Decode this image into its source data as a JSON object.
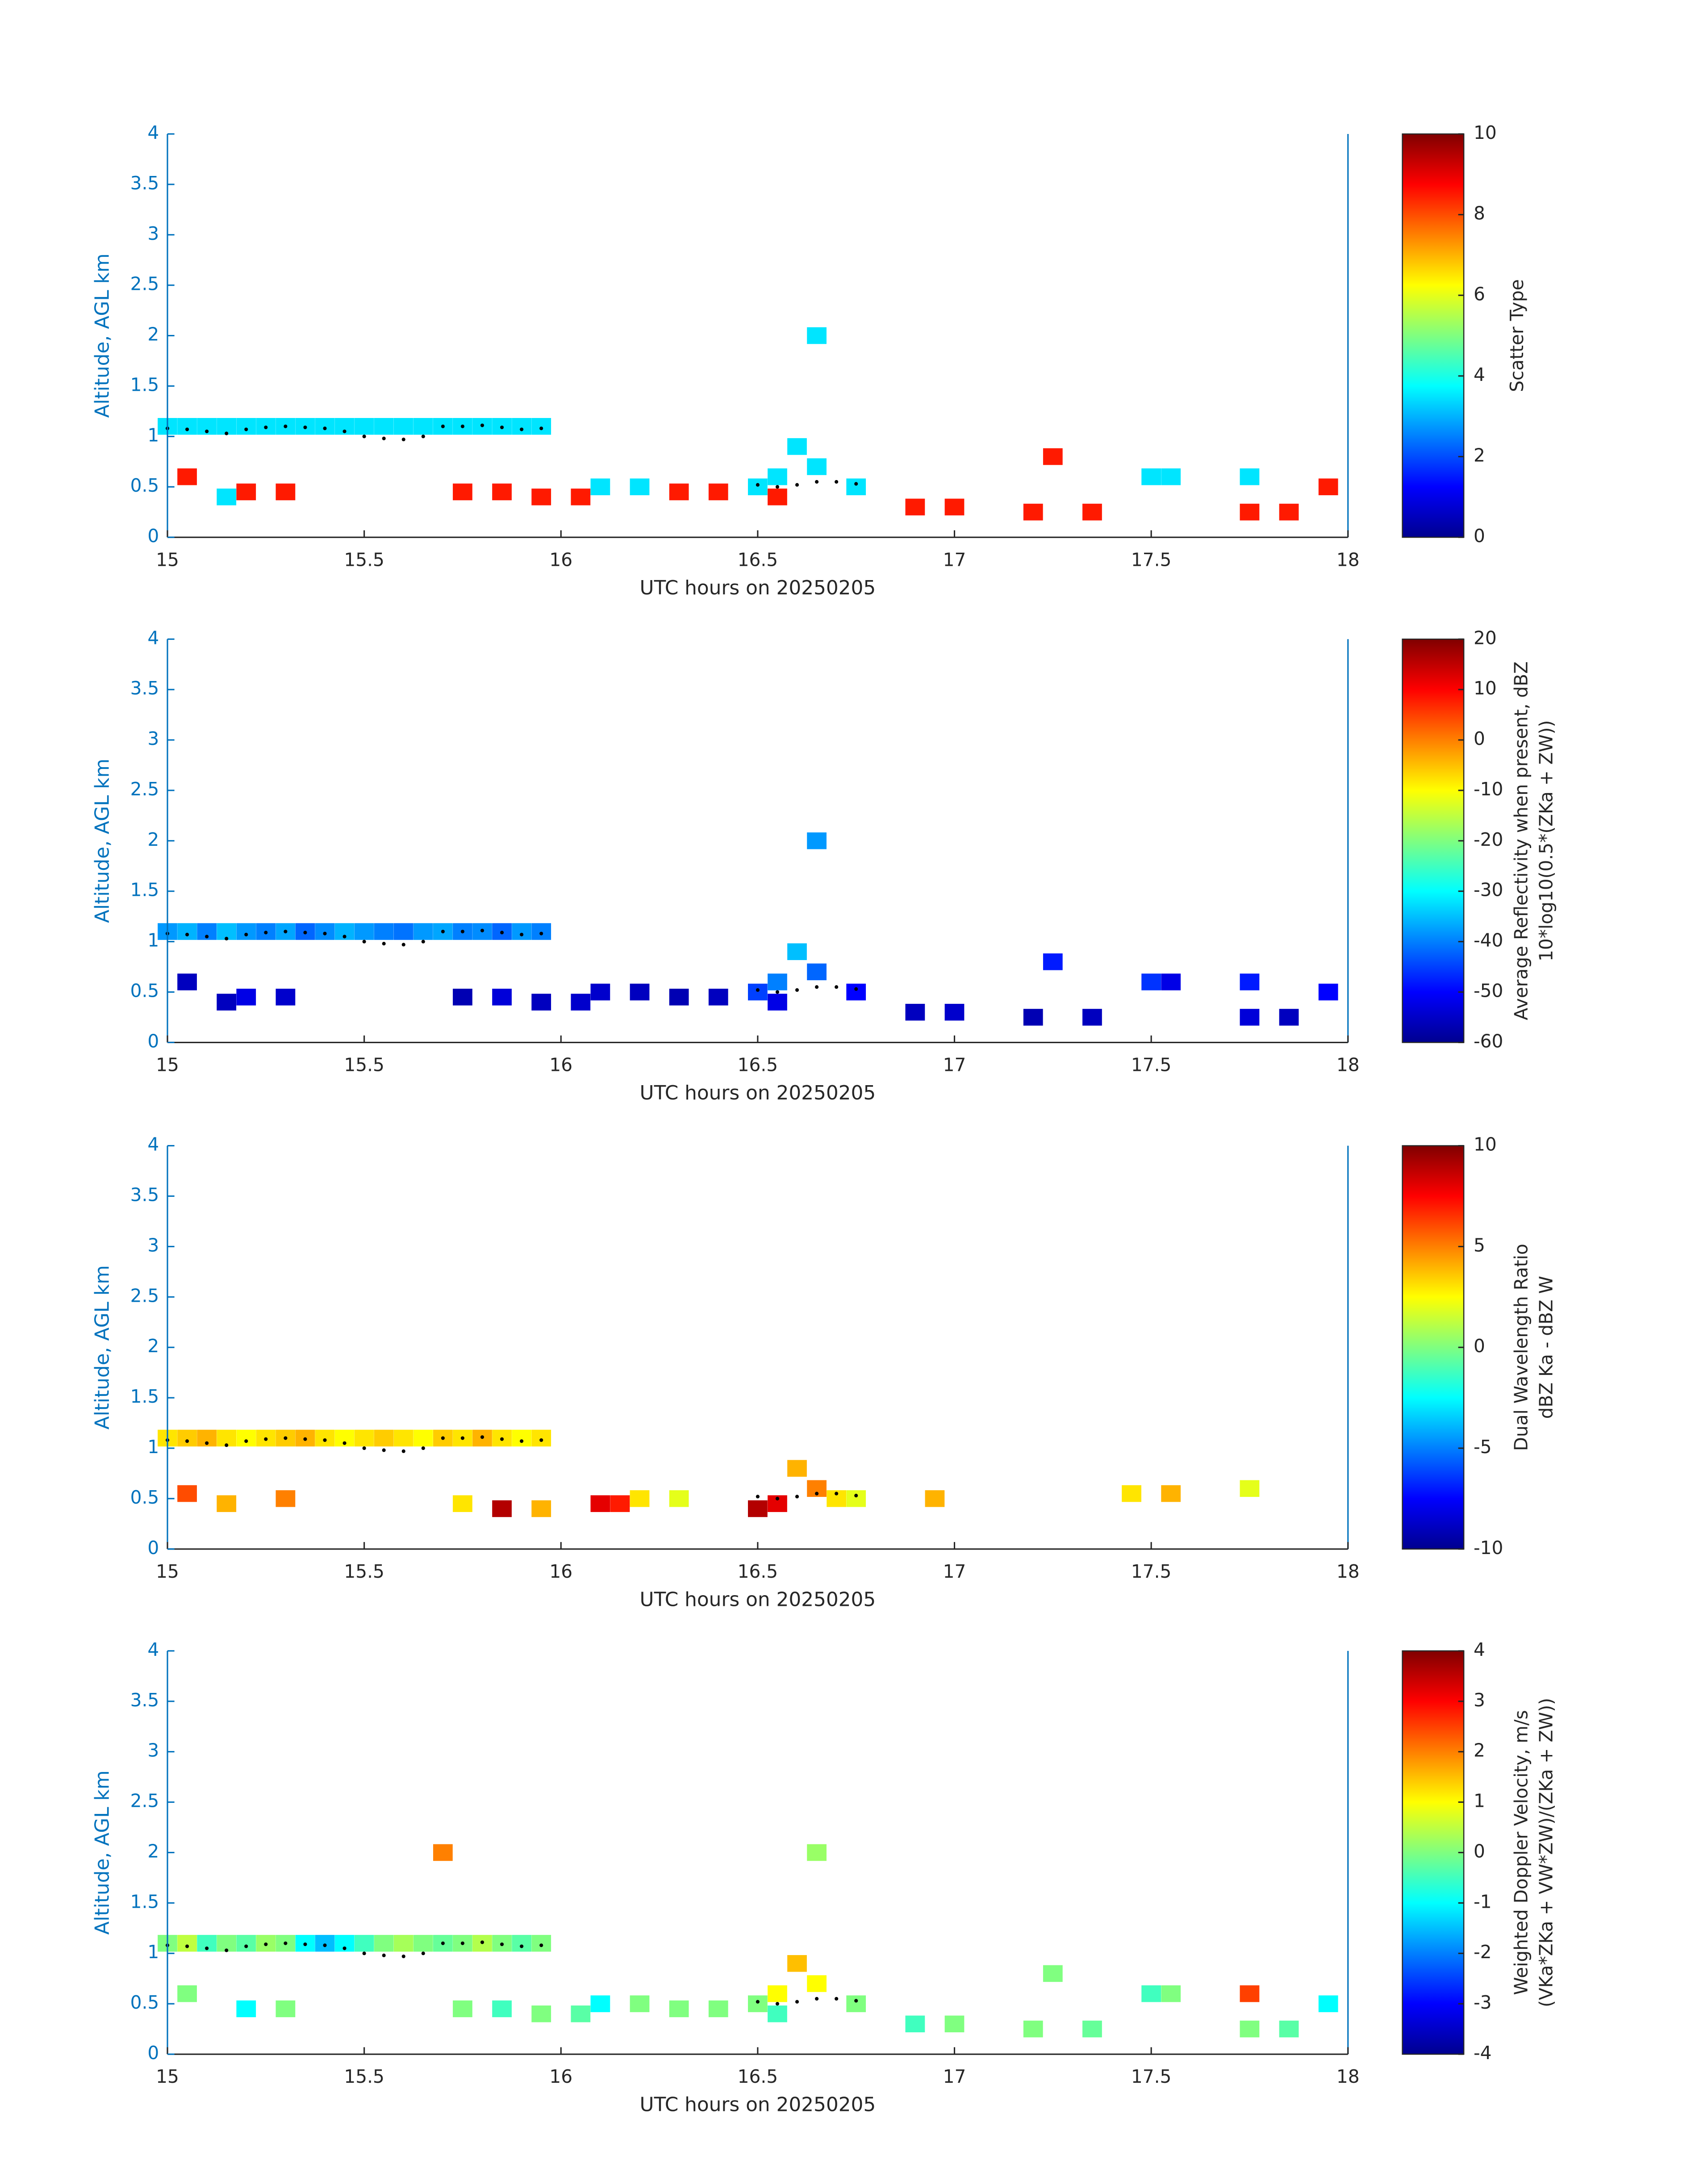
{
  "chart_data": [
    {
      "type": "heatmap",
      "xlabel": "UTC hours on 20250205",
      "ylabel": "Altitude, AGL km",
      "xlim": [
        15,
        18
      ],
      "ylim": [
        0,
        4
      ],
      "xticks": [
        15,
        15.5,
        16,
        16.5,
        17,
        17.5,
        18
      ],
      "yticks": [
        0,
        0.5,
        1,
        1.5,
        2,
        2.5,
        3,
        3.5,
        4
      ],
      "colormap": "jet",
      "colorbar": {
        "label": [
          "Scatter Type"
        ],
        "lim": [
          0,
          10
        ],
        "ticks": [
          0,
          2,
          4,
          6,
          8,
          10
        ]
      },
      "cells": {
        "x": [
          15.0,
          15.05,
          15.1,
          15.15,
          15.2,
          15.25,
          15.3,
          15.35,
          15.4,
          15.45,
          15.5,
          15.55,
          15.6,
          15.65,
          15.7,
          15.75,
          15.8,
          15.85,
          15.9,
          15.95,
          15.05,
          15.2,
          15.3,
          15.75,
          15.85,
          15.95,
          16.05,
          16.3,
          16.4,
          16.55,
          16.9,
          17.0,
          17.2,
          17.35,
          17.75,
          17.85,
          17.95,
          17.25,
          16.1,
          16.2,
          16.5,
          16.55,
          16.6,
          16.65,
          16.75,
          17.5,
          17.55,
          17.75,
          16.65,
          15.15
        ],
        "y": [
          1.1,
          1.1,
          1.1,
          1.1,
          1.1,
          1.1,
          1.1,
          1.1,
          1.1,
          1.1,
          1.1,
          1.1,
          1.1,
          1.1,
          1.1,
          1.1,
          1.1,
          1.1,
          1.1,
          1.1,
          0.6,
          0.45,
          0.45,
          0.45,
          0.45,
          0.4,
          0.4,
          0.45,
          0.45,
          0.4,
          0.3,
          0.3,
          0.25,
          0.25,
          0.25,
          0.25,
          0.5,
          0.8,
          0.5,
          0.5,
          0.5,
          0.6,
          0.9,
          0.7,
          0.5,
          0.6,
          0.6,
          0.6,
          2.0,
          0.4
        ],
        "values": [
          3.5,
          3.5,
          3.5,
          3.5,
          3.5,
          3.5,
          3.5,
          3.5,
          3.5,
          3.5,
          3.5,
          3.5,
          3.5,
          3.5,
          3.5,
          3.5,
          3.5,
          3.5,
          3.5,
          3.5,
          8.5,
          8.5,
          8.5,
          8.5,
          8.5,
          8.5,
          8.5,
          8.5,
          8.5,
          8.5,
          8.5,
          8.5,
          8.5,
          8.5,
          8.5,
          8.5,
          8.5,
          8.5,
          3.5,
          3.5,
          3.5,
          3.5,
          3.5,
          3.5,
          3.5,
          3.5,
          3.5,
          3.5,
          3.5,
          3.5
        ]
      },
      "dots": {
        "x": [
          15.0,
          15.05,
          15.1,
          15.15,
          15.2,
          15.25,
          15.3,
          15.35,
          15.4,
          15.45,
          15.5,
          15.55,
          15.6,
          15.65,
          15.7,
          15.75,
          15.8,
          15.85,
          15.9,
          15.95,
          16.5,
          16.55,
          16.6,
          16.65,
          16.7,
          16.75
        ],
        "y": [
          1.08,
          1.07,
          1.05,
          1.03,
          1.07,
          1.09,
          1.1,
          1.09,
          1.08,
          1.05,
          1.0,
          0.98,
          0.97,
          1.0,
          1.1,
          1.1,
          1.11,
          1.09,
          1.07,
          1.08,
          0.52,
          0.5,
          0.52,
          0.55,
          0.55,
          0.53
        ]
      }
    },
    {
      "type": "heatmap",
      "xlabel": "UTC hours on 20250205",
      "ylabel": "Altitude, AGL km",
      "xlim": [
        15,
        18
      ],
      "ylim": [
        0,
        4
      ],
      "xticks": [
        15,
        15.5,
        16,
        16.5,
        17,
        17.5,
        18
      ],
      "yticks": [
        0,
        0.5,
        1,
        1.5,
        2,
        2.5,
        3,
        3.5,
        4
      ],
      "colormap": "jet",
      "colorbar": {
        "label": [
          "Average Reflectivity when present, dBZ",
          "10*log10(0.5*(ZKa + ZW))"
        ],
        "lim": [
          -60,
          20
        ],
        "ticks": [
          -60,
          -50,
          -40,
          -30,
          -20,
          -10,
          0,
          10,
          20
        ]
      },
      "cells": {
        "x": [
          15.0,
          15.05,
          15.1,
          15.15,
          15.2,
          15.25,
          15.3,
          15.35,
          15.4,
          15.45,
          15.5,
          15.55,
          15.6,
          15.65,
          15.7,
          15.75,
          15.8,
          15.85,
          15.9,
          15.95,
          15.05,
          15.2,
          15.3,
          15.75,
          15.85,
          15.95,
          16.05,
          16.3,
          16.4,
          16.55,
          16.9,
          17.0,
          17.2,
          17.35,
          17.75,
          17.85,
          17.95,
          17.25,
          16.1,
          16.2,
          16.5,
          16.55,
          16.6,
          16.65,
          16.75,
          17.5,
          17.55,
          17.75,
          16.65,
          15.15
        ],
        "y": [
          1.1,
          1.1,
          1.1,
          1.1,
          1.1,
          1.1,
          1.1,
          1.1,
          1.1,
          1.1,
          1.1,
          1.1,
          1.1,
          1.1,
          1.1,
          1.1,
          1.1,
          1.1,
          1.1,
          1.1,
          0.6,
          0.45,
          0.45,
          0.45,
          0.45,
          0.4,
          0.4,
          0.45,
          0.45,
          0.4,
          0.3,
          0.3,
          0.25,
          0.25,
          0.25,
          0.25,
          0.5,
          0.8,
          0.5,
          0.5,
          0.5,
          0.6,
          0.9,
          0.7,
          0.5,
          0.6,
          0.6,
          0.6,
          2.0,
          0.4
        ],
        "values": [
          -38,
          -36,
          -40,
          -35,
          -38,
          -40,
          -37,
          -42,
          -39,
          -36,
          -38,
          -40,
          -41,
          -38,
          -37,
          -40,
          -39,
          -42,
          -38,
          -40,
          -55,
          -52,
          -54,
          -56,
          -53,
          -55,
          -54,
          -56,
          -55,
          -52,
          -55,
          -54,
          -56,
          -55,
          -53,
          -55,
          -50,
          -48,
          -54,
          -55,
          -45,
          -40,
          -35,
          -42,
          -50,
          -46,
          -52,
          -48,
          -38,
          -55
        ]
      },
      "dots": {
        "x": [
          15.0,
          15.05,
          15.1,
          15.15,
          15.2,
          15.25,
          15.3,
          15.35,
          15.4,
          15.45,
          15.5,
          15.55,
          15.6,
          15.65,
          15.7,
          15.75,
          15.8,
          15.85,
          15.9,
          15.95,
          16.5,
          16.55,
          16.6,
          16.65,
          16.7,
          16.75
        ],
        "y": [
          1.08,
          1.07,
          1.05,
          1.03,
          1.07,
          1.09,
          1.1,
          1.09,
          1.08,
          1.05,
          1.0,
          0.98,
          0.97,
          1.0,
          1.1,
          1.1,
          1.11,
          1.09,
          1.07,
          1.08,
          0.52,
          0.5,
          0.52,
          0.55,
          0.55,
          0.53
        ]
      }
    },
    {
      "type": "heatmap",
      "xlabel": "UTC hours on 20250205",
      "ylabel": "Altitude, AGL km",
      "xlim": [
        15,
        18
      ],
      "ylim": [
        0,
        4
      ],
      "xticks": [
        15,
        15.5,
        16,
        16.5,
        17,
        17.5,
        18
      ],
      "yticks": [
        0,
        0.5,
        1,
        1.5,
        2,
        2.5,
        3,
        3.5,
        4
      ],
      "colormap": "jet",
      "colorbar": {
        "label": [
          "Dual Wavelength Ratio",
          "dBZ Ka - dBZ W"
        ],
        "lim": [
          -10,
          10
        ],
        "ticks": [
          -10,
          -5,
          0,
          5,
          10
        ]
      },
      "cells": {
        "x": [
          15.0,
          15.05,
          15.1,
          15.15,
          15.2,
          15.25,
          15.3,
          15.35,
          15.4,
          15.45,
          15.5,
          15.55,
          15.6,
          15.65,
          15.7,
          15.75,
          15.8,
          15.85,
          15.9,
          15.95,
          15.05,
          15.15,
          15.3,
          15.75,
          15.85,
          15.95,
          16.1,
          16.15,
          16.2,
          16.3,
          16.5,
          16.55,
          16.6,
          16.65,
          16.7,
          16.75,
          16.95,
          17.45,
          17.55,
          17.75
        ],
        "y": [
          1.1,
          1.1,
          1.1,
          1.1,
          1.1,
          1.1,
          1.1,
          1.1,
          1.1,
          1.1,
          1.1,
          1.1,
          1.1,
          1.1,
          1.1,
          1.1,
          1.1,
          1.1,
          1.1,
          1.1,
          0.55,
          0.45,
          0.5,
          0.45,
          0.4,
          0.4,
          0.45,
          0.45,
          0.5,
          0.5,
          0.4,
          0.45,
          0.8,
          0.6,
          0.5,
          0.5,
          0.5,
          0.55,
          0.55,
          0.6
        ],
        "values": [
          3,
          3.5,
          4,
          3,
          2.5,
          3,
          3.5,
          4,
          3,
          2.5,
          3,
          3.5,
          3,
          2.5,
          3.5,
          3,
          4,
          3,
          2.5,
          3,
          6,
          4,
          5,
          3,
          9,
          4,
          8,
          7,
          3,
          2,
          9,
          8,
          4,
          5,
          3,
          2,
          4,
          3,
          4,
          2
        ]
      },
      "dots": {
        "x": [
          15.0,
          15.05,
          15.1,
          15.15,
          15.2,
          15.25,
          15.3,
          15.35,
          15.4,
          15.45,
          15.5,
          15.55,
          15.6,
          15.65,
          15.7,
          15.75,
          15.8,
          15.85,
          15.9,
          15.95,
          16.5,
          16.55,
          16.6,
          16.65,
          16.7,
          16.75
        ],
        "y": [
          1.08,
          1.07,
          1.05,
          1.03,
          1.07,
          1.09,
          1.1,
          1.09,
          1.08,
          1.05,
          1.0,
          0.98,
          0.97,
          1.0,
          1.1,
          1.1,
          1.11,
          1.09,
          1.07,
          1.08,
          0.52,
          0.5,
          0.52,
          0.55,
          0.55,
          0.53
        ]
      }
    },
    {
      "type": "heatmap",
      "xlabel": "UTC hours on 20250205",
      "ylabel": "Altitude, AGL km",
      "xlim": [
        15,
        18
      ],
      "ylim": [
        0,
        4
      ],
      "xticks": [
        15,
        15.5,
        16,
        16.5,
        17,
        17.5,
        18
      ],
      "yticks": [
        0,
        0.5,
        1,
        1.5,
        2,
        2.5,
        3,
        3.5,
        4
      ],
      "colormap": "jet",
      "colorbar": {
        "label": [
          "Weighted Doppler Velocity, m/s",
          "(VKa*ZKa + VW*ZW)/(ZKa + ZW))"
        ],
        "lim": [
          -4,
          4
        ],
        "ticks": [
          -4,
          -3,
          -2,
          -1,
          0,
          1,
          2,
          3,
          4
        ]
      },
      "cells": {
        "x": [
          15.0,
          15.05,
          15.1,
          15.15,
          15.2,
          15.25,
          15.3,
          15.35,
          15.4,
          15.45,
          15.5,
          15.55,
          15.6,
          15.65,
          15.7,
          15.75,
          15.8,
          15.85,
          15.9,
          15.95,
          15.05,
          15.2,
          15.3,
          15.75,
          15.85,
          15.95,
          16.05,
          16.3,
          16.4,
          16.55,
          16.9,
          17.0,
          17.2,
          17.35,
          17.75,
          17.85,
          17.95,
          17.25,
          16.1,
          16.2,
          16.5,
          16.55,
          16.6,
          16.65,
          16.75,
          17.5,
          17.55,
          17.75,
          16.65,
          15.7
        ],
        "y": [
          1.1,
          1.1,
          1.1,
          1.1,
          1.1,
          1.1,
          1.1,
          1.1,
          1.1,
          1.1,
          1.1,
          1.1,
          1.1,
          1.1,
          1.1,
          1.1,
          1.1,
          1.1,
          1.1,
          1.1,
          0.6,
          0.45,
          0.45,
          0.45,
          0.45,
          0.4,
          0.4,
          0.45,
          0.45,
          0.4,
          0.3,
          0.3,
          0.25,
          0.25,
          0.25,
          0.25,
          0.5,
          0.8,
          0.5,
          0.5,
          0.5,
          0.6,
          0.9,
          0.7,
          0.5,
          0.6,
          0.6,
          0.6,
          2.0,
          2.0
        ],
        "values": [
          0,
          0.5,
          -0.5,
          0,
          -0.3,
          0.2,
          0,
          -1,
          -1.5,
          -1,
          -0.5,
          0,
          0.3,
          0,
          -0.2,
          0,
          0.4,
          0,
          -0.3,
          0,
          0,
          -1,
          0,
          0,
          -0.5,
          0,
          -0.3,
          0,
          0,
          -0.5,
          -0.5,
          0,
          0,
          -0.2,
          0,
          -0.3,
          -1,
          0,
          -1,
          0,
          0,
          1,
          1.5,
          1,
          0,
          -0.5,
          0,
          2.5,
          0.2,
          2
        ]
      },
      "dots": {
        "x": [
          15.0,
          15.05,
          15.1,
          15.15,
          15.2,
          15.25,
          15.3,
          15.35,
          15.4,
          15.45,
          15.5,
          15.55,
          15.6,
          15.65,
          15.7,
          15.75,
          15.8,
          15.85,
          15.9,
          15.95,
          16.5,
          16.55,
          16.6,
          16.65,
          16.7,
          16.75
        ],
        "y": [
          1.08,
          1.07,
          1.05,
          1.03,
          1.07,
          1.09,
          1.1,
          1.09,
          1.08,
          1.05,
          1.0,
          0.98,
          0.97,
          1.0,
          1.1,
          1.1,
          1.11,
          1.09,
          1.07,
          1.08,
          0.52,
          0.5,
          0.52,
          0.55,
          0.55,
          0.53
        ]
      }
    }
  ]
}
